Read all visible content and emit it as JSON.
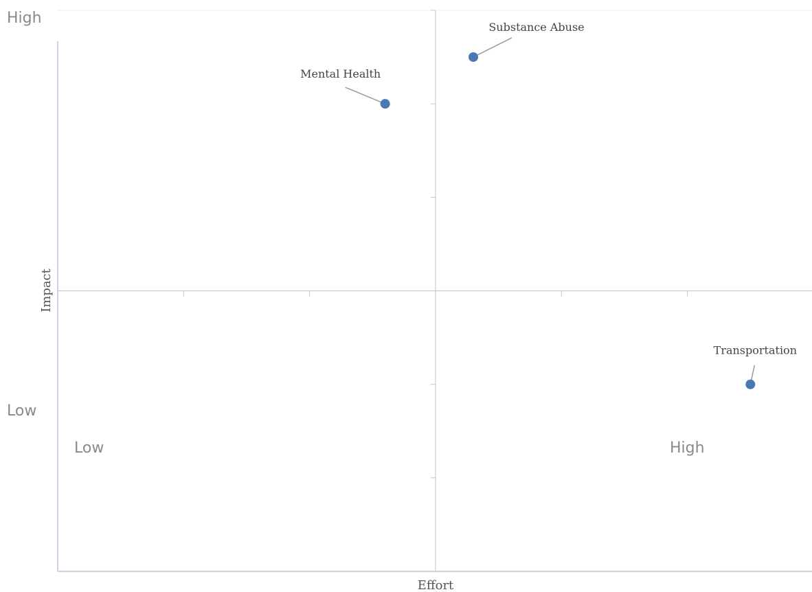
{
  "chart_data": {
    "type": "scatter",
    "title": "",
    "xlabel": "Effort",
    "ylabel": "Impact",
    "xlim": [
      0,
      6
    ],
    "ylim": [
      0,
      6
    ],
    "grid": false,
    "quadrant_lines": {
      "x": 3,
      "y": 3
    },
    "corner_labels": {
      "y_high": "High",
      "y_low": "Low",
      "x_low": "Low",
      "x_high": "High"
    },
    "points": [
      {
        "label": "Substance Abuse",
        "x": 3.3,
        "y": 5.5
      },
      {
        "label": "Mental Health",
        "x": 2.6,
        "y": 5.0
      },
      {
        "label": "Transportation",
        "x": 5.5,
        "y": 2.0
      }
    ],
    "colors": {
      "point": "#4a78b5",
      "axis": "#c8d4e6",
      "divider": "#c4c4c4",
      "leader": "#9a9a9a"
    }
  }
}
